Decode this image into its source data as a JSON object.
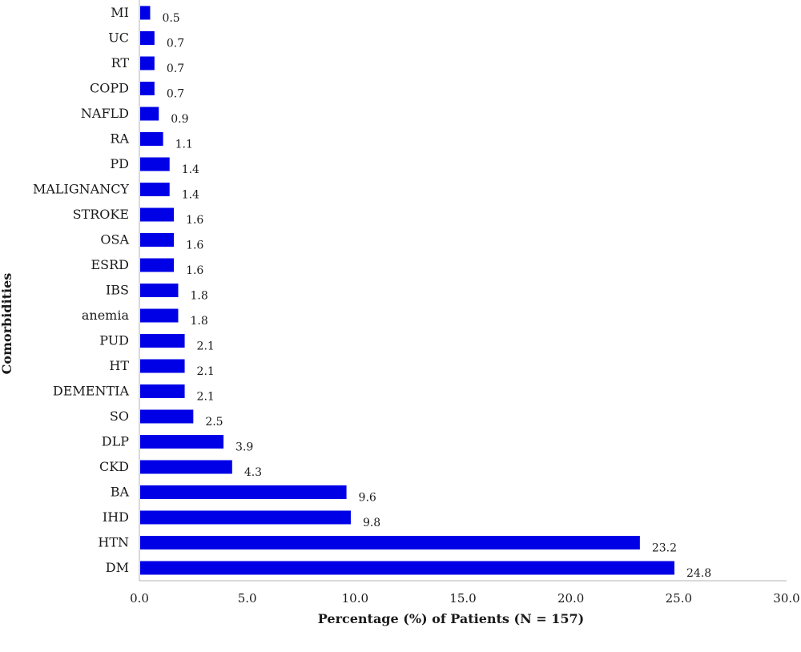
{
  "chart_data": {
    "type": "bar",
    "orientation": "horizontal",
    "categories": [
      "MI",
      "UC",
      "RT",
      "COPD",
      "NAFLD",
      "RA",
      "PD",
      "MALIGNANCY",
      "STROKE",
      "OSA",
      "ESRD",
      "IBS",
      "anemia",
      "PUD",
      "HT",
      "DEMENTIA",
      "SO",
      "DLP",
      "CKD",
      "BA",
      "IHD",
      "HTN",
      "DM"
    ],
    "values": [
      0.5,
      0.7,
      0.7,
      0.7,
      0.9,
      1.1,
      1.4,
      1.4,
      1.6,
      1.6,
      1.6,
      1.8,
      1.8,
      2.1,
      2.1,
      2.1,
      2.5,
      3.9,
      4.3,
      9.6,
      9.8,
      23.2,
      24.8
    ],
    "value_labels": [
      "0.5",
      "0.7",
      "0.7",
      "0.7",
      "0.9",
      "1.1",
      "1.4",
      "1.4",
      "1.6",
      "1.6",
      "1.6",
      "1.8",
      "1.8",
      "2.1",
      "2.1",
      "2.1",
      "2.5",
      "3.9",
      "4.3",
      "9.6",
      "9.8",
      "23.2",
      "24.8"
    ],
    "xlabel": "Percentage (%) of Patients (N = 157)",
    "ylabel": "Comorbidities",
    "xlim": [
      0,
      30
    ],
    "xticks": [
      "0.0",
      "5.0",
      "10.0",
      "15.0",
      "20.0",
      "25.0",
      "30.0"
    ],
    "bar_color": "#0000e6",
    "grid": false,
    "legend": "none"
  }
}
